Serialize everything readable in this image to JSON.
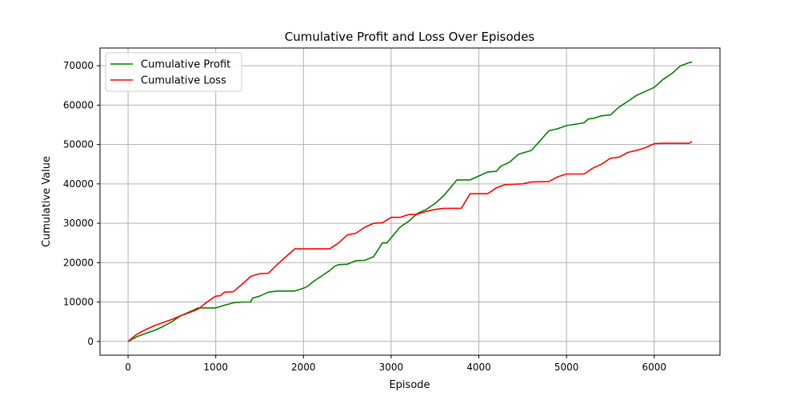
{
  "chart_data": {
    "type": "line",
    "title": "Cumulative Profit and Loss Over Episodes",
    "xlabel": "Episode",
    "ylabel": "Cumulative Value",
    "xlim": [
      -320,
      6750
    ],
    "ylim": [
      -3500,
      74500
    ],
    "xticks": [
      0,
      1000,
      2000,
      3000,
      4000,
      5000,
      6000
    ],
    "yticks": [
      0,
      10000,
      20000,
      30000,
      40000,
      50000,
      60000,
      70000
    ],
    "grid": true,
    "legend_position": "top-left",
    "series": [
      {
        "name": "Cumulative Profit",
        "color": "#008000",
        "points": [
          [
            0,
            0
          ],
          [
            100,
            1200
          ],
          [
            200,
            2000
          ],
          [
            300,
            2800
          ],
          [
            400,
            3800
          ],
          [
            500,
            5000
          ],
          [
            600,
            6500
          ],
          [
            700,
            7500
          ],
          [
            800,
            8500
          ],
          [
            1000,
            8500
          ],
          [
            1100,
            9200
          ],
          [
            1200,
            9800
          ],
          [
            1300,
            10000
          ],
          [
            1400,
            10000
          ],
          [
            1420,
            11000
          ],
          [
            1500,
            11500
          ],
          [
            1600,
            12500
          ],
          [
            1700,
            12800
          ],
          [
            1900,
            12800
          ],
          [
            2000,
            13500
          ],
          [
            2050,
            14000
          ],
          [
            2100,
            15000
          ],
          [
            2200,
            16500
          ],
          [
            2300,
            18000
          ],
          [
            2350,
            19000
          ],
          [
            2400,
            19500
          ],
          [
            2500,
            19600
          ],
          [
            2600,
            20500
          ],
          [
            2700,
            20600
          ],
          [
            2800,
            21500
          ],
          [
            2900,
            25000
          ],
          [
            2950,
            25000
          ],
          [
            3100,
            29000
          ],
          [
            3200,
            30500
          ],
          [
            3300,
            32500
          ],
          [
            3400,
            33500
          ],
          [
            3500,
            35000
          ],
          [
            3600,
            37000
          ],
          [
            3750,
            41000
          ],
          [
            3900,
            41000
          ],
          [
            4100,
            43000
          ],
          [
            4200,
            43200
          ],
          [
            4250,
            44500
          ],
          [
            4350,
            45500
          ],
          [
            4450,
            47500
          ],
          [
            4600,
            48500
          ],
          [
            4700,
            51000
          ],
          [
            4800,
            53500
          ],
          [
            4900,
            54000
          ],
          [
            5000,
            54800
          ],
          [
            5200,
            55500
          ],
          [
            5250,
            56500
          ],
          [
            5300,
            56600
          ],
          [
            5400,
            57300
          ],
          [
            5500,
            57500
          ],
          [
            5600,
            59500
          ],
          [
            5700,
            61000
          ],
          [
            5800,
            62500
          ],
          [
            5900,
            63500
          ],
          [
            6000,
            64500
          ],
          [
            6100,
            66500
          ],
          [
            6200,
            68000
          ],
          [
            6300,
            70000
          ],
          [
            6400,
            70800
          ],
          [
            6430,
            70900
          ]
        ]
      },
      {
        "name": "Cumulative Loss",
        "color": "#ff0000",
        "points": [
          [
            0,
            0
          ],
          [
            100,
            1800
          ],
          [
            200,
            3000
          ],
          [
            300,
            4000
          ],
          [
            400,
            4800
          ],
          [
            500,
            5600
          ],
          [
            600,
            6500
          ],
          [
            700,
            7300
          ],
          [
            800,
            8200
          ],
          [
            900,
            10000
          ],
          [
            1000,
            11500
          ],
          [
            1050,
            11600
          ],
          [
            1100,
            12500
          ],
          [
            1200,
            12600
          ],
          [
            1300,
            14500
          ],
          [
            1400,
            16500
          ],
          [
            1500,
            17200
          ],
          [
            1600,
            17300
          ],
          [
            1700,
            19500
          ],
          [
            1800,
            21500
          ],
          [
            1900,
            23500
          ],
          [
            2000,
            23500
          ],
          [
            2300,
            23500
          ],
          [
            2400,
            25000
          ],
          [
            2500,
            27000
          ],
          [
            2600,
            27500
          ],
          [
            2700,
            29000
          ],
          [
            2800,
            30000
          ],
          [
            2900,
            30100
          ],
          [
            3000,
            31500
          ],
          [
            3100,
            31500
          ],
          [
            3200,
            32200
          ],
          [
            3300,
            32300
          ],
          [
            3400,
            33000
          ],
          [
            3500,
            33500
          ],
          [
            3600,
            33800
          ],
          [
            3800,
            33800
          ],
          [
            3900,
            37500
          ],
          [
            4100,
            37500
          ],
          [
            4200,
            39000
          ],
          [
            4300,
            39800
          ],
          [
            4500,
            40000
          ],
          [
            4600,
            40500
          ],
          [
            4800,
            40600
          ],
          [
            4900,
            41800
          ],
          [
            5000,
            42500
          ],
          [
            5200,
            42500
          ],
          [
            5300,
            44000
          ],
          [
            5400,
            45000
          ],
          [
            5500,
            46500
          ],
          [
            5600,
            46800
          ],
          [
            5700,
            48000
          ],
          [
            5800,
            48500
          ],
          [
            5900,
            49200
          ],
          [
            6000,
            50200
          ],
          [
            6100,
            50300
          ],
          [
            6400,
            50300
          ],
          [
            6430,
            50800
          ]
        ]
      }
    ]
  }
}
